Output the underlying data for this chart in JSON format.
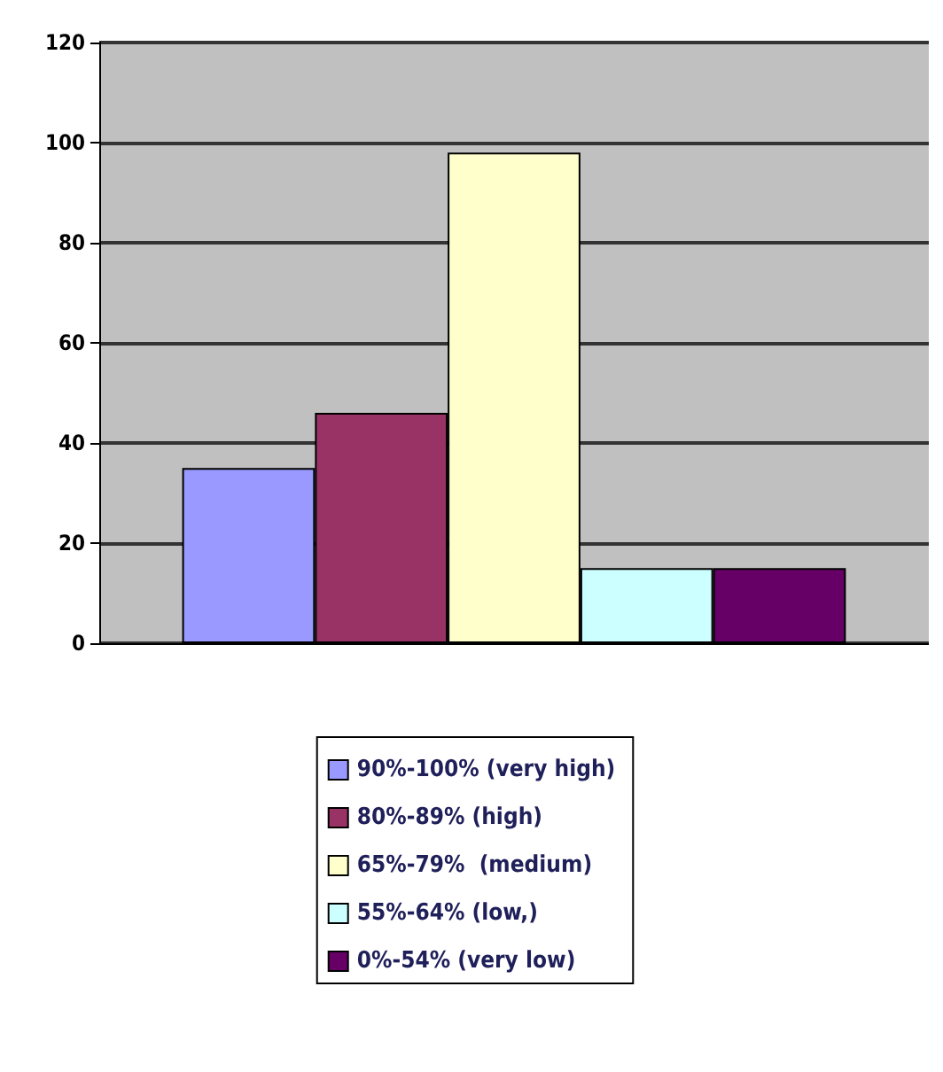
{
  "chart_data": {
    "type": "bar",
    "categories": [
      null
    ],
    "series": [
      {
        "name": "90%-100% (very high)",
        "color": "#9999ff",
        "values": [
          35
        ]
      },
      {
        "name": "80%-89% (high)",
        "color": "#993366",
        "values": [
          46
        ]
      },
      {
        "name": "65%-79%  (medium)",
        "color": "#ffffcc",
        "values": [
          98
        ]
      },
      {
        "name": "55%-64% (low,)",
        "color": "#ccffff",
        "values": [
          15
        ]
      },
      {
        "name": "0%-54% (very low)",
        "color": "#660066",
        "values": [
          15
        ]
      }
    ],
    "ylim": [
      0,
      120
    ],
    "yticks": [
      0,
      20,
      40,
      60,
      80,
      100,
      120
    ],
    "grid": "y",
    "legend": "bottom"
  }
}
